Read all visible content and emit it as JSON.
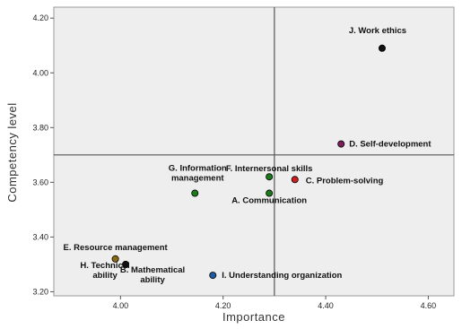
{
  "chart_data": {
    "type": "scatter",
    "title": "",
    "xlabel": "Importance",
    "ylabel": "Competency level",
    "xlim": [
      3.87,
      4.65
    ],
    "ylim": [
      3.185,
      4.24
    ],
    "x_ticks": [
      "4.00",
      "4.20",
      "4.40",
      "4.60"
    ],
    "y_ticks": [
      "3.20",
      "3.40",
      "3.60",
      "3.80",
      "4.00",
      "4.20"
    ],
    "grid": false,
    "reference_lines": {
      "x": 4.3,
      "y": 3.7
    },
    "points": [
      {
        "label_lines": [
          "J. Work ethics"
        ],
        "x": 4.51,
        "y": 4.09,
        "color": "#111111"
      },
      {
        "label_lines": [
          "D. Self-development"
        ],
        "x": 4.43,
        "y": 3.74,
        "color": "#7a1f5a"
      },
      {
        "label_lines": [
          "C. Problem-solving"
        ],
        "x": 4.34,
        "y": 3.61,
        "color": "#cc2020"
      },
      {
        "label_lines": [
          "F. Internersonal skills"
        ],
        "x": 4.29,
        "y": 3.62,
        "color": "#1a7a1a"
      },
      {
        "label_lines": [
          "A. Communication"
        ],
        "x": 4.29,
        "y": 3.56,
        "color": "#1a7a1a"
      },
      {
        "label_lines": [
          "G. Information",
          "management"
        ],
        "x": 4.145,
        "y": 3.56,
        "color": "#1a7a1a"
      },
      {
        "label_lines": [
          "E. Resource management"
        ],
        "x": 3.99,
        "y": 3.32,
        "color": "#8a6a10"
      },
      {
        "label_lines": [
          "H. Technical",
          "ability"
        ],
        "x": 4.01,
        "y": 3.3,
        "color": "#111111"
      },
      {
        "label_lines": [
          "B. Mathematical",
          "ability"
        ],
        "x": 4.01,
        "y": 3.3,
        "color": "#111111"
      },
      {
        "label_lines": [
          "I. Understanding organization"
        ],
        "x": 4.18,
        "y": 3.26,
        "color": "#1f5aa0"
      }
    ]
  }
}
